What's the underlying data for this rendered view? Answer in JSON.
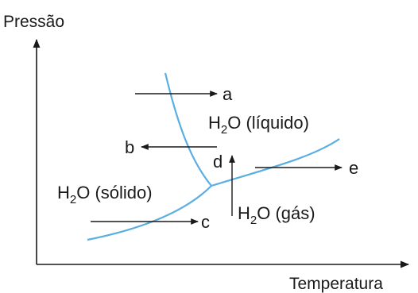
{
  "axes": {
    "y_label": "Pressão",
    "x_label": "Temperatura"
  },
  "phases": {
    "liquid": {
      "formula_main": "H",
      "formula_sub": "2",
      "formula_rest": "O (líquido)"
    },
    "solid": {
      "formula_main": "H",
      "formula_sub": "2",
      "formula_rest": "O (sólido)"
    },
    "gas": {
      "formula_main": "H",
      "formula_sub": "2",
      "formula_rest": "O (gás)"
    }
  },
  "arrows": {
    "a": "a",
    "b": "b",
    "c": "c",
    "d": "d",
    "e": "e"
  },
  "colors": {
    "curve": "#5aaee0",
    "ink": "#1a1a1a"
  }
}
